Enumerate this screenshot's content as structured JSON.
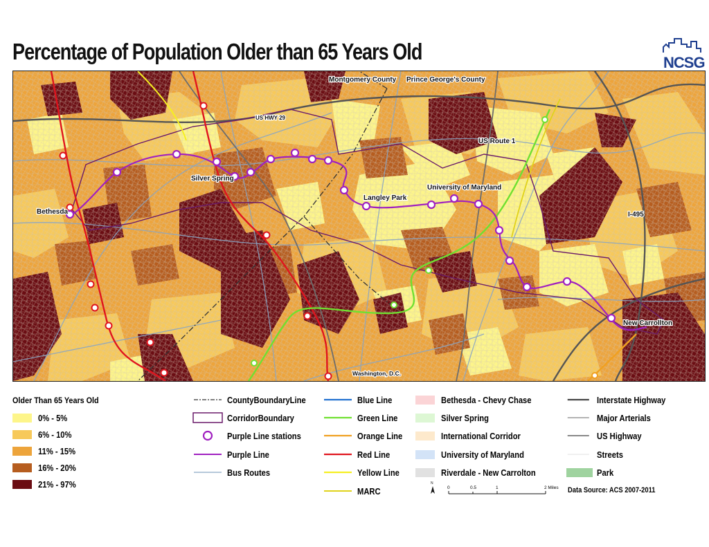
{
  "title": "Percentage of Population Older than 65 Years Old",
  "logo_text": "NCSG",
  "colors": {
    "class1": "#fdf58a",
    "class2": "#f7c95a",
    "class3": "#eda43b",
    "class4": "#b65d1f",
    "class5": "#6b0d13",
    "purple": "#a020c0",
    "red_line": "#e0141e",
    "green_line": "#6fe030",
    "orange_line": "#f0a020",
    "blue_line": "#2070d0",
    "yellow_line": "#f5ef20",
    "marc": "#e0d21a"
  },
  "map_labels": {
    "montgomery": "Montgomery County",
    "princegeorges": "Prince George's County",
    "us29": "US HWY 29",
    "usroute1": "US Route 1",
    "silverspring": "Silver Spring",
    "bethesda": "Bethesda",
    "langleypark": "Langley Park",
    "umd": "University of Maryland",
    "i495": "I-495",
    "newcarrollton": "New Carrollton",
    "dc": "Washington, D.C."
  },
  "legend": {
    "title": "Older Than 65 Years Old",
    "classes": [
      "0% - 5%",
      "6% - 10%",
      "11% - 15%",
      "16% - 20%",
      "21% - 97%"
    ],
    "col2": [
      "CountyBoundaryLine",
      "CorridorBoundary",
      "Purple Line stations",
      "Purple Line",
      "Bus Routes"
    ],
    "col3": [
      "Blue Line",
      "Green Line",
      "Orange Line",
      "Red Line",
      "Yellow Line",
      "MARC"
    ],
    "col4": [
      "Bethesda - Chevy Chase",
      "Silver Spring",
      "International Corridor",
      "University of Maryland",
      "Riverdale - New Carrolton"
    ],
    "col5": [
      "Interstate Highway",
      "Major Arterials",
      "US Highway",
      "Streets",
      "Park"
    ],
    "scale_ticks": [
      "0",
      "0.5",
      "1",
      "2 Miles"
    ],
    "north": "N",
    "data_source": "Data Source: ACS 2007-2011"
  }
}
